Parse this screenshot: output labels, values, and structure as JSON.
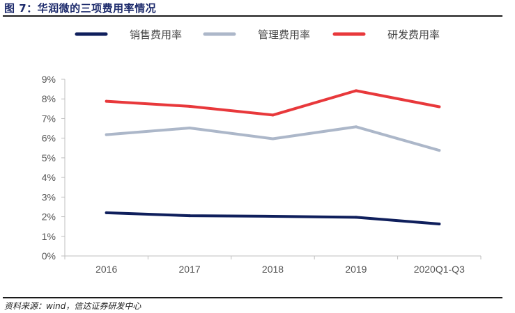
{
  "figure": {
    "title": "图 7：华润微的三项费用率情况",
    "source": "资料来源：wind，信达证券研发中心"
  },
  "chart_data": {
    "type": "line",
    "title": "",
    "xlabel": "",
    "ylabel": "",
    "categories": [
      "2016",
      "2017",
      "2018",
      "2019",
      "2020Q1-Q3"
    ],
    "ylim": [
      0,
      9
    ],
    "yticks": [
      "0%",
      "1%",
      "2%",
      "3%",
      "4%",
      "5%",
      "6%",
      "7%",
      "8%",
      "9%"
    ],
    "legend_position": "top",
    "grid": false,
    "series": [
      {
        "name": "销售费用率",
        "color": "#0f1f5c",
        "values": [
          2.2,
          2.05,
          2.02,
          1.97,
          1.63
        ]
      },
      {
        "name": "管理费用率",
        "color": "#acb7c9",
        "values": [
          6.18,
          6.52,
          5.97,
          6.58,
          5.38
        ]
      },
      {
        "name": "研发费用率",
        "color": "#e8383b",
        "values": [
          7.88,
          7.62,
          7.18,
          8.42,
          7.6
        ]
      }
    ]
  }
}
